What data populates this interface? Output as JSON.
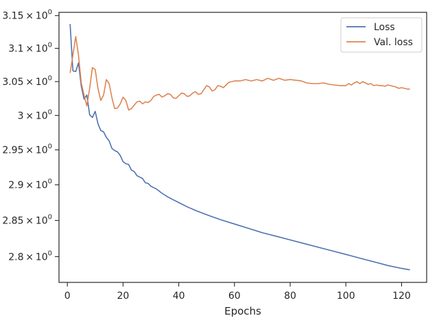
{
  "chart_data": {
    "type": "line",
    "title": "",
    "xlabel": "Epochs",
    "ylabel": "",
    "xlim": [
      -3,
      129
    ],
    "ylim": [
      2.765,
      3.155
    ],
    "y_scale": "log",
    "grid": false,
    "legend_position": "top-right",
    "x_ticks": [
      0,
      20,
      40,
      60,
      80,
      100,
      120
    ],
    "x_tick_labels": [
      "0",
      "20",
      "40",
      "60",
      "80",
      "100",
      "120"
    ],
    "y_ticks": [
      {
        "value": 2.8,
        "mantissa": "2.8"
      },
      {
        "value": 2.85,
        "mantissa": "2.85"
      },
      {
        "value": 2.9,
        "mantissa": "2.9"
      },
      {
        "value": 2.95,
        "mantissa": "2.95"
      },
      {
        "value": 3.0,
        "mantissa": "3"
      },
      {
        "value": 3.05,
        "mantissa": "3.05"
      },
      {
        "value": 3.1,
        "mantissa": "3.1"
      },
      {
        "value": 3.15,
        "mantissa": "3.15"
      }
    ],
    "y_tick_times": "×",
    "y_tick_base": "10",
    "y_tick_exponent": "0",
    "series": [
      {
        "name": "Loss",
        "color": "#4c72b0",
        "x": [
          1,
          2,
          3,
          4,
          5,
          6,
          7,
          8,
          9,
          10,
          11,
          12,
          13,
          14,
          15,
          16,
          17,
          18,
          19,
          20,
          21,
          22,
          23,
          24,
          25,
          26,
          27,
          28,
          29,
          30,
          32,
          34,
          36,
          38,
          40,
          43,
          46,
          50,
          55,
          60,
          65,
          70,
          75,
          80,
          85,
          90,
          95,
          100,
          105,
          110,
          115,
          120,
          123
        ],
        "y": [
          3.137,
          3.066,
          3.065,
          3.078,
          3.043,
          3.024,
          3.03,
          3.001,
          2.997,
          3.006,
          2.988,
          2.978,
          2.976,
          2.968,
          2.963,
          2.952,
          2.949,
          2.947,
          2.942,
          2.933,
          2.93,
          2.929,
          2.921,
          2.919,
          2.913,
          2.911,
          2.909,
          2.903,
          2.902,
          2.898,
          2.894,
          2.888,
          2.883,
          2.879,
          2.875,
          2.869,
          2.864,
          2.858,
          2.851,
          2.845,
          2.839,
          2.833,
          2.828,
          2.823,
          2.818,
          2.813,
          2.808,
          2.803,
          2.798,
          2.793,
          2.788,
          2.784,
          2.782
        ]
      },
      {
        "name": "Val. loss",
        "color": "#dd8452",
        "x": [
          1,
          2,
          3,
          4,
          5,
          6,
          7,
          8,
          9,
          10,
          11,
          12,
          13,
          14,
          15,
          16,
          17,
          18,
          19,
          20,
          21,
          22,
          23,
          24,
          25,
          26,
          27,
          28,
          29,
          30,
          31,
          32,
          33,
          34,
          35,
          36,
          37,
          38,
          39,
          40,
          41,
          42,
          43,
          44,
          45,
          46,
          47,
          48,
          49,
          50,
          51,
          52,
          53,
          54,
          55,
          56,
          57,
          58,
          59,
          60,
          62,
          64,
          66,
          68,
          70,
          72,
          74,
          76,
          78,
          80,
          82,
          84,
          86,
          88,
          90,
          92,
          94,
          96,
          98,
          100,
          101,
          102,
          103,
          104,
          105,
          106,
          107,
          108,
          109,
          110,
          111,
          112,
          113,
          114,
          115,
          116,
          117,
          118,
          119,
          120,
          121,
          122,
          123
        ],
        "y": [
          3.063,
          3.09,
          3.118,
          3.09,
          3.048,
          3.03,
          3.014,
          3.04,
          3.071,
          3.068,
          3.04,
          3.022,
          3.03,
          3.053,
          3.047,
          3.026,
          3.01,
          3.011,
          3.017,
          3.027,
          3.022,
          3.008,
          3.01,
          3.015,
          3.02,
          3.021,
          3.017,
          3.02,
          3.019,
          3.022,
          3.028,
          3.03,
          3.031,
          3.027,
          3.029,
          3.032,
          3.031,
          3.026,
          3.025,
          3.029,
          3.033,
          3.032,
          3.028,
          3.029,
          3.033,
          3.035,
          3.031,
          3.032,
          3.038,
          3.044,
          3.042,
          3.036,
          3.038,
          3.044,
          3.043,
          3.041,
          3.045,
          3.049,
          3.05,
          3.051,
          3.051,
          3.053,
          3.051,
          3.053,
          3.051,
          3.055,
          3.052,
          3.055,
          3.052,
          3.053,
          3.052,
          3.051,
          3.048,
          3.047,
          3.047,
          3.048,
          3.046,
          3.045,
          3.044,
          3.044,
          3.047,
          3.045,
          3.048,
          3.05,
          3.047,
          3.05,
          3.048,
          3.046,
          3.047,
          3.044,
          3.045,
          3.044,
          3.044,
          3.043,
          3.045,
          3.044,
          3.043,
          3.042,
          3.04,
          3.041,
          3.04,
          3.039,
          3.039
        ]
      }
    ]
  }
}
